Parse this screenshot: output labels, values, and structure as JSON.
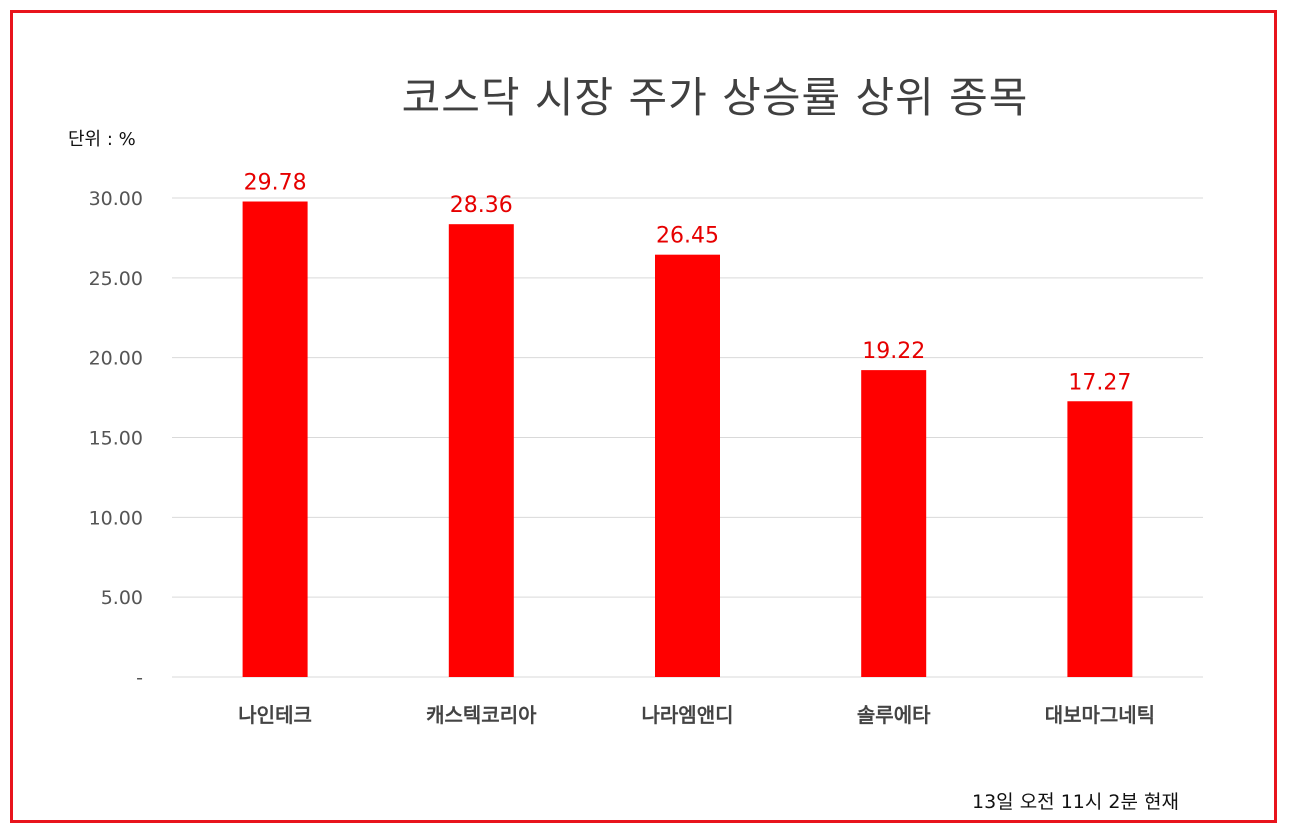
{
  "chart_data": {
    "type": "bar",
    "title": "코스닥 시장 주가 상승률 상위 종목",
    "unit_label": "단위 : %",
    "footnote": "13일  오전 11시 2분 현재",
    "categories": [
      "나인테크",
      "캐스텍코리아",
      "나라엠앤디",
      "솔루에타",
      "대보마그네틱"
    ],
    "values": [
      29.78,
      28.36,
      26.45,
      19.22,
      17.27
    ],
    "data_labels": [
      "29.78",
      "28.36",
      "26.45",
      "19.22",
      "17.27"
    ],
    "ylim": [
      0,
      30
    ],
    "yticks": [
      0,
      5,
      10,
      15,
      20,
      25,
      30
    ],
    "ytick_labels": [
      "-",
      "5.00",
      "10.00",
      "15.00",
      "20.00",
      "25.00",
      "30.00"
    ],
    "grid": true,
    "bar_color": "#ff0000",
    "label_color": "#e60000",
    "grid_color": "#d9d9d9",
    "frame_color": "#e8141c"
  }
}
